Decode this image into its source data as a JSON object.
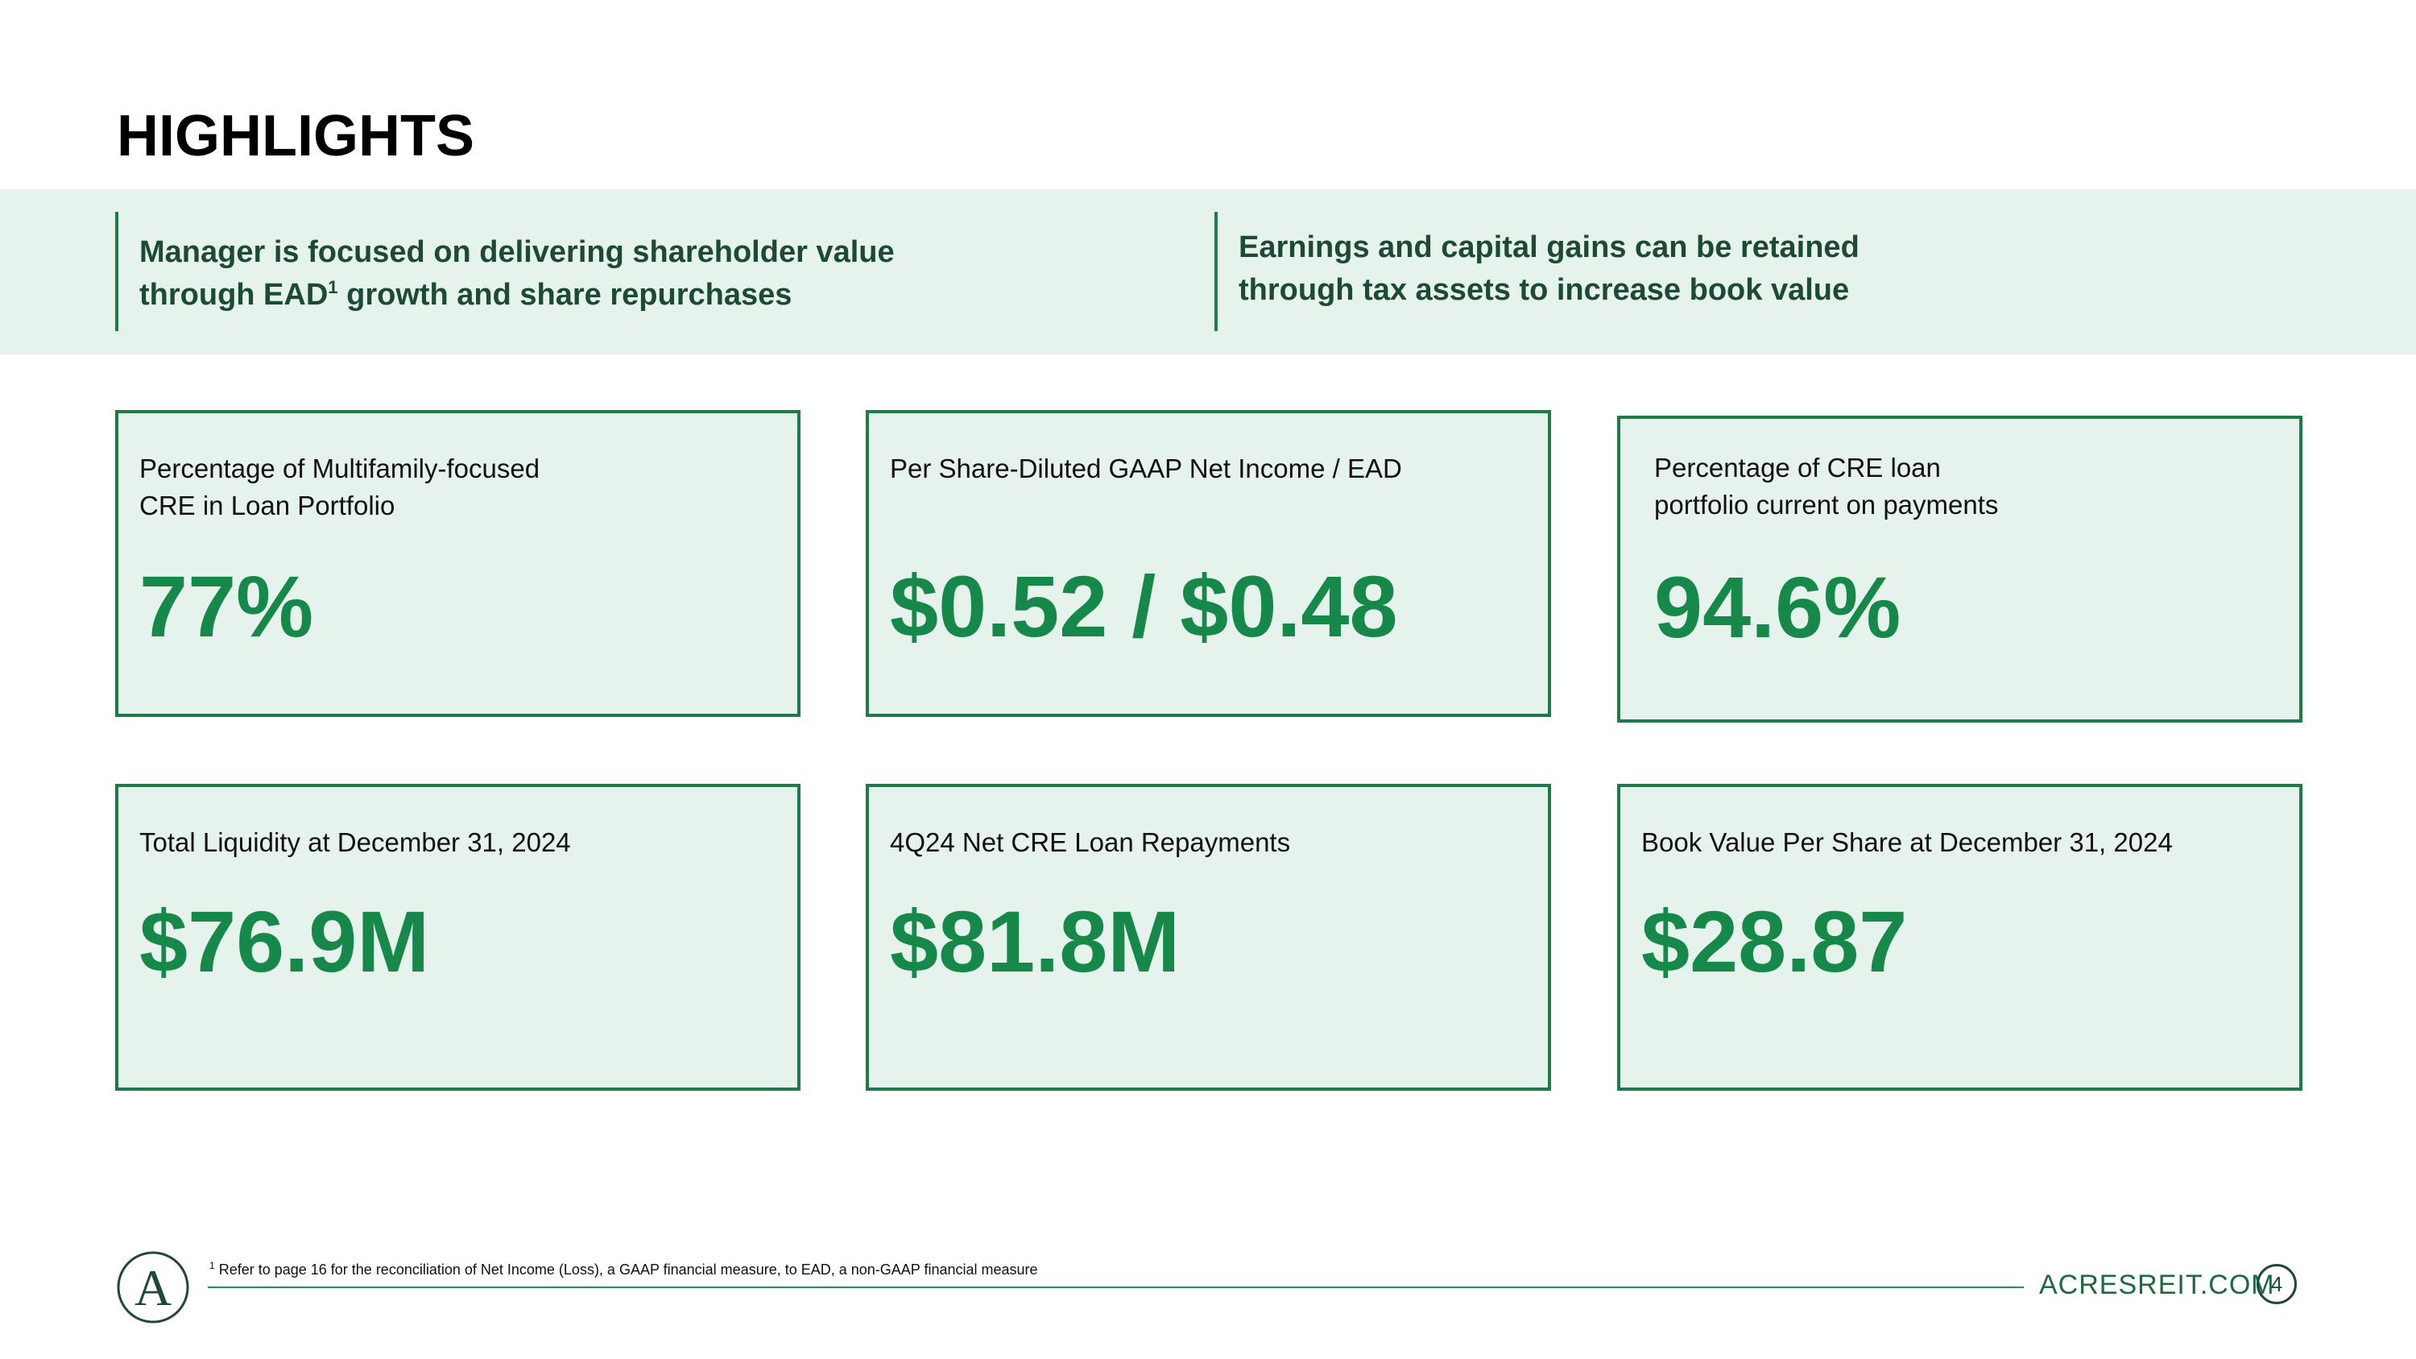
{
  "page": {
    "title": "HIGHLIGHTS"
  },
  "band": {
    "left": {
      "line1": "Manager is focused on delivering shareholder value",
      "line2_prefix": "through EAD",
      "line2_sup": "1",
      "line2_suffix": " growth and share repurchases"
    },
    "right": {
      "line1": "Earnings and capital gains can be retained",
      "line2": "through tax assets to increase book value"
    }
  },
  "cards": [
    {
      "label": "Percentage of Multifamily-focused\nCRE in Loan Portfolio",
      "value": "77%"
    },
    {
      "label": "Per Share-Diluted GAAP Net Income / EAD",
      "value": "$0.52 / $0.48"
    },
    {
      "label": "Percentage of CRE loan\nportfolio current on payments",
      "value": "94.6%"
    },
    {
      "label": "Total Liquidity at December 31, 2024",
      "value": "$76.9M"
    },
    {
      "label": "4Q24 Net CRE Loan Repayments",
      "value": "$81.8M"
    },
    {
      "label": "Book Value Per Share at December 31, 2024",
      "value": "$28.87"
    }
  ],
  "footer": {
    "footnote_marker": "1",
    "footnote_text": " Refer to page 16 for the reconciliation of Net Income (Loss), a GAAP financial measure, to EAD, a non-GAAP financial measure",
    "website": "ACRESREIT.COM",
    "page_number": "4",
    "logo_letter": "A"
  },
  "colors": {
    "accent_green": "#15884a",
    "band_background": "#e6f2ec",
    "border_green": "#1e7a47",
    "dark_green_text": "#1d4a35"
  }
}
